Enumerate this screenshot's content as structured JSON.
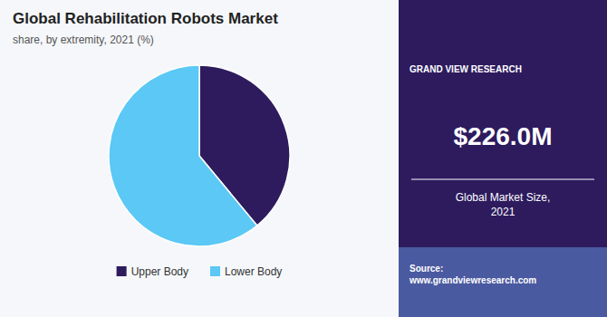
{
  "chart_data": {
    "type": "pie",
    "title": "Global Rehabilitation Robots Market",
    "subtitle": "share, by extremity, 2021 (%)",
    "categories": [
      "Upper Body",
      "Lower Body"
    ],
    "values": [
      39,
      61
    ],
    "colors": [
      "#2D1B5E",
      "#5BC8F5"
    ],
    "legend": "bottom",
    "annotations": [
      "GRAND VIEW RESEARCH",
      "$226.0M",
      "Global Market Size,\n2021",
      "Source:\nwww.grandviewresearch.com"
    ]
  }
}
